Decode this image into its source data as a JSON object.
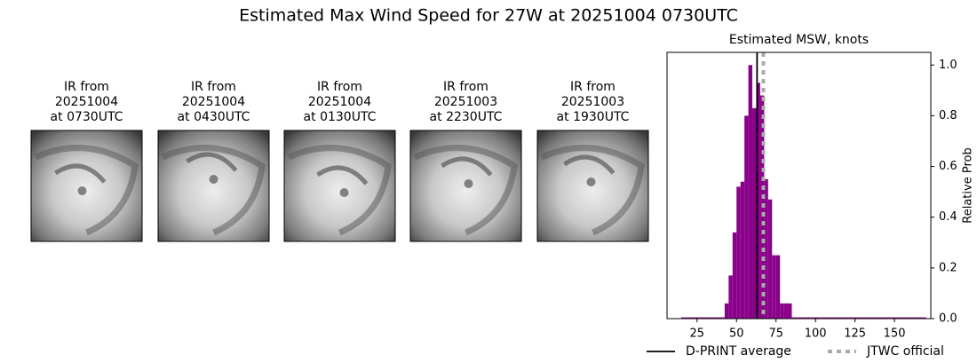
{
  "title": "Estimated Max Wind Speed for 27W at 20251004 0730UTC",
  "panels": [
    {
      "lines": [
        "IR from",
        "20251004",
        "at 0730UTC"
      ]
    },
    {
      "lines": [
        "IR from",
        "20251004",
        "at 0430UTC"
      ]
    },
    {
      "lines": [
        "IR from",
        "20251004",
        "at 0130UTC"
      ]
    },
    {
      "lines": [
        "IR from",
        "20251003",
        "at 2230UTC"
      ]
    },
    {
      "lines": [
        "IR from",
        "20251003",
        "at 1930UTC"
      ]
    }
  ],
  "chart_data": {
    "type": "histogram",
    "title": "Estimated MSW, knots",
    "y_label": "Relative Prob",
    "bins": [
      15,
      42.5,
      45,
      47.5,
      50,
      52.5,
      55,
      57.5,
      60,
      62.5,
      65,
      67.5,
      70,
      72.5,
      75,
      77.5,
      80,
      82.5,
      85,
      87.5,
      170
    ],
    "values": [
      0.005,
      0.06,
      0.17,
      0.34,
      0.52,
      0.54,
      0.8,
      1.0,
      0.83,
      0.93,
      0.88,
      0.55,
      0.47,
      0.25,
      0.25,
      0.06,
      0.06,
      0.06,
      0.005,
      0.005
    ],
    "color": "#8b008b",
    "xlim": [
      6,
      173
    ],
    "ylim": [
      0,
      1.05
    ],
    "xticks": [
      25,
      50,
      75,
      100,
      125,
      150
    ],
    "yticks": [
      {
        "value": 0,
        "label": "0.0"
      },
      0.2,
      0.4,
      0.6,
      0.8,
      {
        "value": 1,
        "label": "1.0"
      }
    ],
    "vlines": [
      {
        "name": "D-PRINT average",
        "x": 63,
        "color": "#000000",
        "style": "solid"
      },
      {
        "name": "JTWC official",
        "x": 67,
        "color": "#aaaaaa",
        "style": "dotted"
      }
    ]
  }
}
